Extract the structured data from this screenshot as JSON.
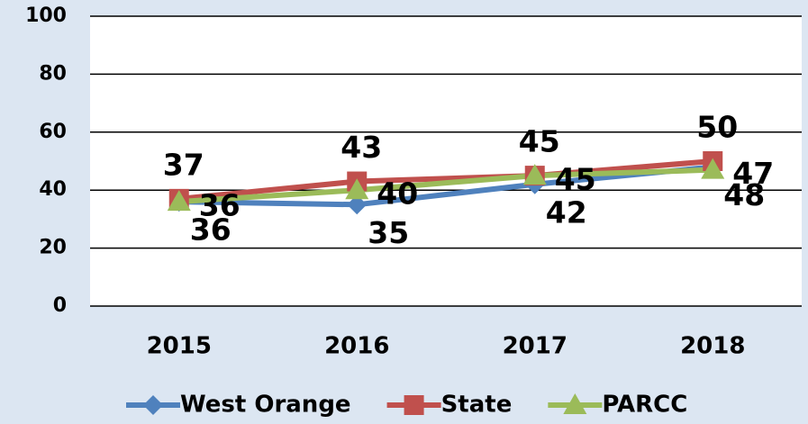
{
  "chart_data": {
    "type": "line",
    "categories": [
      "2015",
      "2016",
      "2017",
      "2018"
    ],
    "series": [
      {
        "name": "West Orange",
        "color": "#4f81bd",
        "marker": "diamond",
        "values": [
          36,
          35,
          42,
          48
        ]
      },
      {
        "name": "State",
        "color": "#c0504d",
        "marker": "square",
        "values": [
          37,
          43,
          45,
          50
        ]
      },
      {
        "name": "PARCC",
        "color": "#9bbb59",
        "marker": "triangle",
        "values": [
          36,
          40,
          45,
          47
        ]
      }
    ],
    "ylim": [
      0,
      100
    ],
    "yticks": [
      0,
      20,
      40,
      60,
      80,
      100
    ],
    "grid": true,
    "legend": "bottom"
  }
}
